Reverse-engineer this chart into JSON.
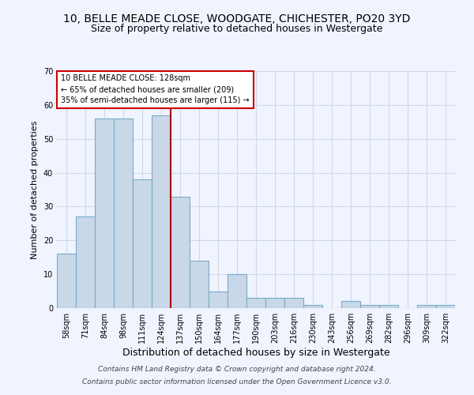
{
  "title": "10, BELLE MEADE CLOSE, WOODGATE, CHICHESTER, PO20 3YD",
  "subtitle": "Size of property relative to detached houses in Westergate",
  "xlabel": "Distribution of detached houses by size in Westergate",
  "ylabel": "Number of detached properties",
  "categories": [
    "58sqm",
    "71sqm",
    "84sqm",
    "98sqm",
    "111sqm",
    "124sqm",
    "137sqm",
    "150sqm",
    "164sqm",
    "177sqm",
    "190sqm",
    "203sqm",
    "216sqm",
    "230sqm",
    "243sqm",
    "256sqm",
    "269sqm",
    "282sqm",
    "296sqm",
    "309sqm",
    "322sqm"
  ],
  "values": [
    16,
    27,
    56,
    56,
    38,
    57,
    33,
    14,
    5,
    10,
    3,
    3,
    3,
    1,
    0,
    2,
    1,
    1,
    0,
    1,
    1
  ],
  "bar_color": "#c8d8e8",
  "bar_edge_color": "#7aaac8",
  "bar_width": 1.0,
  "property_bin_index": 5,
  "red_line_color": "#aa0000",
  "annotation_text": "10 BELLE MEADE CLOSE: 128sqm\n← 65% of detached houses are smaller (209)\n35% of semi-detached houses are larger (115) →",
  "annotation_box_color": "white",
  "annotation_box_edge_color": "#cc0000",
  "ylim": [
    0,
    70
  ],
  "yticks": [
    0,
    10,
    20,
    30,
    40,
    50,
    60,
    70
  ],
  "grid_color": "#d0d8e8",
  "footnote1": "Contains HM Land Registry data © Crown copyright and database right 2024.",
  "footnote2": "Contains public sector information licensed under the Open Government Licence v3.0.",
  "title_fontsize": 10,
  "xlabel_fontsize": 9,
  "ylabel_fontsize": 8,
  "tick_fontsize": 7,
  "annot_fontsize": 7,
  "footnote_fontsize": 6.5,
  "bg_color": "#f0f4ff"
}
